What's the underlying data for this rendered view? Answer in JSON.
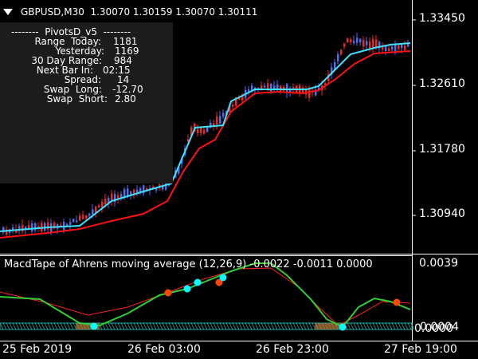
{
  "window": {
    "symbol_line": "GBPUSD,M30  1.30070 1.30159 1.30070 1.30111",
    "collapse_icon": "triangle-down-icon"
  },
  "pivots_panel": {
    "title": "--------  PivotsD_v5  --------",
    "rows": [
      {
        "label": "Range  Today:",
        "value": "1181"
      },
      {
        "label": "Yesterday:",
        "value": "1169"
      },
      {
        "label": "30 Day Range:",
        "value": "984"
      },
      {
        "label": "Next Bar In:",
        "value": "02:15"
      },
      {
        "label": "Spread:",
        "value": "14"
      },
      {
        "label": "Swap  Long:",
        "value": "-12.70"
      },
      {
        "label": "Swap  Short:",
        "value": "2.80"
      }
    ],
    "bg_color": "#1c1c1c"
  },
  "price_axis": {
    "labels": [
      "1.33450",
      "1.32610",
      "1.31780",
      "1.30940"
    ]
  },
  "indicator": {
    "label": "MacdTape of Ahrens moving average (12,26,9) -0.0022 -0.0011 0.0000",
    "axis_labels": [
      "0.0039",
      "0.0004",
      "0.0000"
    ]
  },
  "time_axis": {
    "labels": [
      "25 Feb 2019",
      "26 Feb 03:00",
      "26 Feb 23:00",
      "27 Feb 19:00"
    ]
  },
  "colors": {
    "bull_candle": "#4a6cff",
    "bear_candle": "#ff2020",
    "ma_fast": "#40e0ff",
    "ma_slow": "#ff1010",
    "macd_line": "#32cd32",
    "signal_line": "#ff2020",
    "tape": "#20b2aa",
    "dot_up": "#00ffff",
    "dot_down": "#ff4500"
  }
}
